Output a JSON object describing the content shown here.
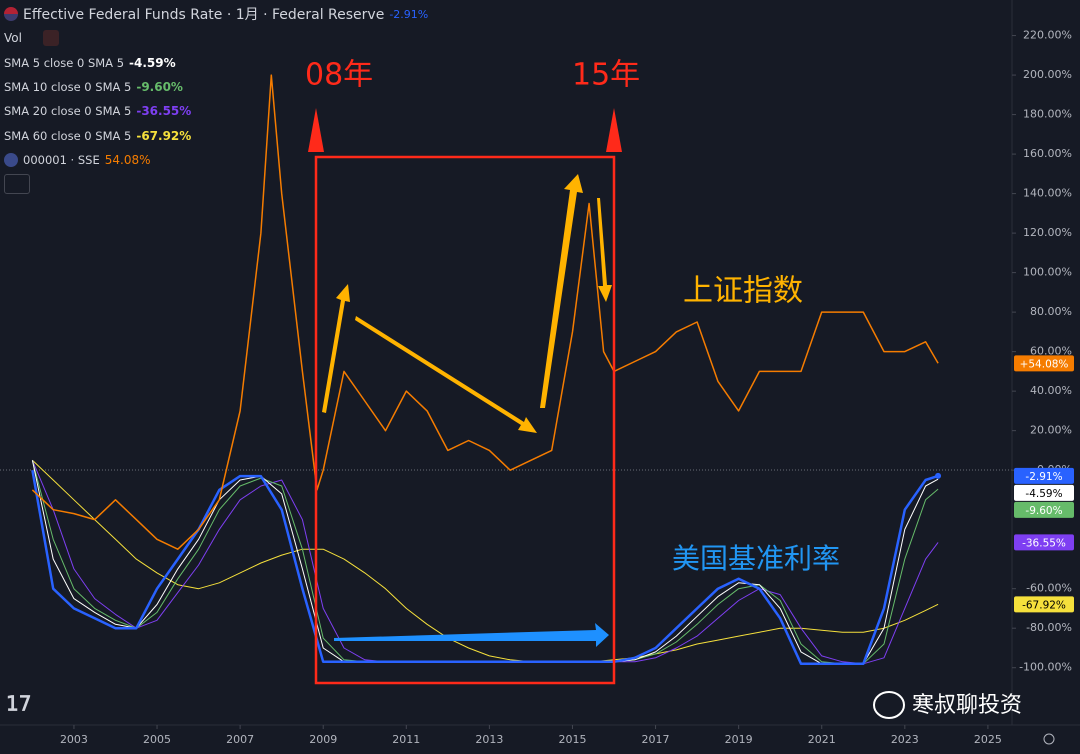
{
  "chart_data": {
    "type": "line",
    "volume_label": "Vol",
    "xlim": [
      2001.22,
      2025.58
    ],
    "xticks": [
      2003,
      2005,
      2007,
      2009,
      2011,
      2013,
      2015,
      2017,
      2019,
      2021,
      2023,
      2025
    ],
    "ylim": [
      -129,
      238
    ],
    "yticks": [
      {
        "value": 220,
        "label": "220.00%"
      },
      {
        "value": 200,
        "label": "200.00%"
      },
      {
        "value": 180,
        "label": "180.00%"
      },
      {
        "value": 160,
        "label": "160.00%"
      },
      {
        "value": 140,
        "label": "140.00%"
      },
      {
        "value": 120,
        "label": "120.00%"
      },
      {
        "value": 100,
        "label": "100.00%"
      },
      {
        "value": 80,
        "label": "80.00%"
      },
      {
        "value": 60,
        "label": "60.00%"
      },
      {
        "value": 40,
        "label": "40.00%"
      },
      {
        "value": 20,
        "label": "20.00%"
      },
      {
        "value": 0,
        "label": "0.00%"
      },
      {
        "value": -60,
        "label": "-60.00%"
      },
      {
        "value": -80,
        "label": "-80.00%"
      },
      {
        "value": -100,
        "label": "-100.00%"
      }
    ],
    "grid": false,
    "series": [
      {
        "name": "Effective Federal Funds Rate · 1月 · Federal Reserve",
        "color": "#2962ff",
        "value_label": "-2.91%",
        "x": [
          2002.0,
          2002.5,
          2003.0,
          2003.5,
          2004.0,
          2004.5,
          2005.0,
          2005.5,
          2006.0,
          2006.5,
          2007.0,
          2007.5,
          2008.0,
          2008.5,
          2009.0,
          2009.5,
          2010.0,
          2010.5,
          2011.0,
          2011.5,
          2012.0,
          2012.5,
          2013.0,
          2013.5,
          2014.0,
          2014.5,
          2015.0,
          2015.5,
          2016.0,
          2016.5,
          2017.0,
          2017.5,
          2018.0,
          2018.5,
          2019.0,
          2019.5,
          2020.0,
          2020.5,
          2021.0,
          2021.5,
          2022.0,
          2022.5,
          2023.0,
          2023.5,
          2023.8
        ],
        "values": [
          0,
          -60,
          -70,
          -75,
          -80,
          -80,
          -60,
          -45,
          -30,
          -10,
          -3,
          -3,
          -20,
          -60,
          -97,
          -97,
          -97,
          -97,
          -97,
          -97,
          -97,
          -97,
          -97,
          -97,
          -97,
          -97,
          -97,
          -97,
          -97,
          -95,
          -90,
          -80,
          -70,
          -60,
          -55,
          -60,
          -75,
          -98,
          -98,
          -98,
          -98,
          -70,
          -20,
          -5,
          -2.91
        ]
      },
      {
        "name": "SMA 5 close 0 SMA 5",
        "color": "#ffffff",
        "value_label": "-4.59%",
        "x": [
          2002.0,
          2002.5,
          2003.0,
          2003.5,
          2004.0,
          2004.5,
          2005.0,
          2005.5,
          2006.0,
          2006.5,
          2007.0,
          2007.5,
          2008.0,
          2008.5,
          2009.0,
          2009.5,
          2010.0,
          2010.5,
          2011.0,
          2011.5,
          2012.0,
          2012.5,
          2013.0,
          2013.5,
          2014.0,
          2014.5,
          2015.0,
          2015.5,
          2016.0,
          2016.5,
          2017.0,
          2017.5,
          2018.0,
          2018.5,
          2019.0,
          2019.5,
          2020.0,
          2020.5,
          2021.0,
          2021.5,
          2022.0,
          2022.5,
          2023.0,
          2023.5,
          2023.8
        ],
        "values": [
          5,
          -45,
          -65,
          -72,
          -78,
          -80,
          -68,
          -50,
          -35,
          -15,
          -5,
          -3,
          -12,
          -50,
          -90,
          -97,
          -97,
          -97,
          -97,
          -97,
          -97,
          -97,
          -97,
          -97,
          -97,
          -97,
          -97,
          -97,
          -97,
          -96,
          -92,
          -84,
          -74,
          -64,
          -57,
          -58,
          -70,
          -92,
          -98,
          -98,
          -98,
          -80,
          -30,
          -8,
          -4.59
        ]
      },
      {
        "name": "SMA 10 close 0 SMA 5",
        "color": "#66bb6a",
        "value_label": "-9.60%",
        "x": [
          2002.0,
          2002.5,
          2003.0,
          2003.5,
          2004.0,
          2004.5,
          2005.0,
          2005.5,
          2006.0,
          2006.5,
          2007.0,
          2007.5,
          2008.0,
          2008.5,
          2009.0,
          2009.5,
          2010.0,
          2010.5,
          2011.0,
          2011.5,
          2012.0,
          2012.5,
          2013.0,
          2013.5,
          2014.0,
          2014.5,
          2015.0,
          2015.5,
          2016.0,
          2016.5,
          2017.0,
          2017.5,
          2018.0,
          2018.5,
          2019.0,
          2019.5,
          2020.0,
          2020.5,
          2021.0,
          2021.5,
          2022.0,
          2022.5,
          2023.0,
          2023.5,
          2023.8
        ],
        "values": [
          5,
          -35,
          -60,
          -70,
          -76,
          -80,
          -72,
          -55,
          -40,
          -20,
          -8,
          -4,
          -8,
          -40,
          -85,
          -96,
          -97,
          -97,
          -97,
          -97,
          -97,
          -97,
          -97,
          -97,
          -97,
          -97,
          -97,
          -97,
          -97,
          -96,
          -93,
          -87,
          -78,
          -68,
          -60,
          -58,
          -66,
          -88,
          -97,
          -98,
          -98,
          -88,
          -45,
          -15,
          -9.6
        ]
      },
      {
        "name": "SMA 20 close 0 SMA 5",
        "color": "#7e3ff2",
        "value_label": "-36.55%",
        "x": [
          2002.0,
          2002.5,
          2003.0,
          2003.5,
          2004.0,
          2004.5,
          2005.0,
          2005.5,
          2006.0,
          2006.5,
          2007.0,
          2007.5,
          2008.0,
          2008.5,
          2009.0,
          2009.5,
          2010.0,
          2010.5,
          2011.0,
          2011.5,
          2012.0,
          2012.5,
          2013.0,
          2013.5,
          2014.0,
          2014.5,
          2015.0,
          2015.5,
          2016.0,
          2016.5,
          2017.0,
          2017.5,
          2018.0,
          2018.5,
          2019.0,
          2019.5,
          2020.0,
          2020.5,
          2021.0,
          2021.5,
          2022.0,
          2022.5,
          2023.0,
          2023.5,
          2023.8
        ],
        "values": [
          5,
          -20,
          -50,
          -65,
          -73,
          -80,
          -76,
          -62,
          -48,
          -30,
          -15,
          -8,
          -5,
          -25,
          -70,
          -90,
          -96,
          -97,
          -97,
          -97,
          -97,
          -97,
          -97,
          -97,
          -97,
          -97,
          -97,
          -97,
          -97,
          -97,
          -95,
          -90,
          -84,
          -75,
          -66,
          -60,
          -63,
          -80,
          -94,
          -97,
          -98,
          -95,
          -70,
          -45,
          -36.55
        ]
      },
      {
        "name": "SMA 60 close 0 SMA 5",
        "color": "#f5e03c",
        "value_label": "-67.92%",
        "x": [
          2002.0,
          2002.5,
          2003.0,
          2003.5,
          2004.0,
          2004.5,
          2005.0,
          2005.5,
          2006.0,
          2006.5,
          2007.0,
          2007.5,
          2008.0,
          2008.5,
          2009.0,
          2009.5,
          2010.0,
          2010.5,
          2011.0,
          2011.5,
          2012.0,
          2012.5,
          2013.0,
          2013.5,
          2014.0,
          2014.5,
          2015.0,
          2015.5,
          2016.0,
          2016.5,
          2017.0,
          2017.5,
          2018.0,
          2018.5,
          2019.0,
          2019.5,
          2020.0,
          2020.5,
          2021.0,
          2021.5,
          2022.0,
          2022.5,
          2023.0,
          2023.5,
          2023.8
        ],
        "values": [
          5,
          -5,
          -15,
          -25,
          -35,
          -45,
          -52,
          -58,
          -60,
          -57,
          -52,
          -47,
          -43,
          -40,
          -40,
          -45,
          -52,
          -60,
          -70,
          -78,
          -85,
          -90,
          -94,
          -96,
          -97,
          -97,
          -97,
          -97,
          -96,
          -95,
          -93,
          -91,
          -88,
          -86,
          -84,
          -82,
          -80,
          -80,
          -81,
          -82,
          -82,
          -80,
          -76,
          -71,
          -67.92
        ]
      },
      {
        "name": "000001 · SSE",
        "color": "#f57c00",
        "value_label": "54.08%",
        "badge_label": "+54.08%",
        "x": [
          2002.0,
          2002.5,
          2003.0,
          2003.5,
          2004.0,
          2004.5,
          2005.0,
          2005.5,
          2006.0,
          2006.5,
          2007.0,
          2007.5,
          2007.75,
          2008.0,
          2008.5,
          2008.85,
          2009.0,
          2009.5,
          2010.0,
          2010.5,
          2011.0,
          2011.5,
          2012.0,
          2012.5,
          2013.0,
          2013.5,
          2014.0,
          2014.5,
          2015.0,
          2015.4,
          2015.75,
          2016.0,
          2016.5,
          2017.0,
          2017.5,
          2018.0,
          2018.5,
          2019.0,
          2019.5,
          2020.0,
          2020.5,
          2021.0,
          2021.5,
          2022.0,
          2022.5,
          2023.0,
          2023.5,
          2023.8
        ],
        "values": [
          -10,
          -20,
          -22,
          -25,
          -15,
          -25,
          -35,
          -40,
          -30,
          -15,
          30,
          120,
          200,
          140,
          50,
          -10,
          0,
          50,
          35,
          20,
          40,
          30,
          10,
          15,
          10,
          0,
          5,
          10,
          70,
          135,
          60,
          50,
          55,
          60,
          70,
          75,
          45,
          30,
          50,
          50,
          50,
          80,
          80,
          80,
          60,
          60,
          65,
          54.08
        ]
      }
    ],
    "annotations": [
      {
        "text": "08年"
      },
      {
        "text": "15年"
      },
      {
        "text": "上证指数"
      },
      {
        "text": "美国基准利率"
      }
    ],
    "watermark": "寒叔聊投资"
  }
}
